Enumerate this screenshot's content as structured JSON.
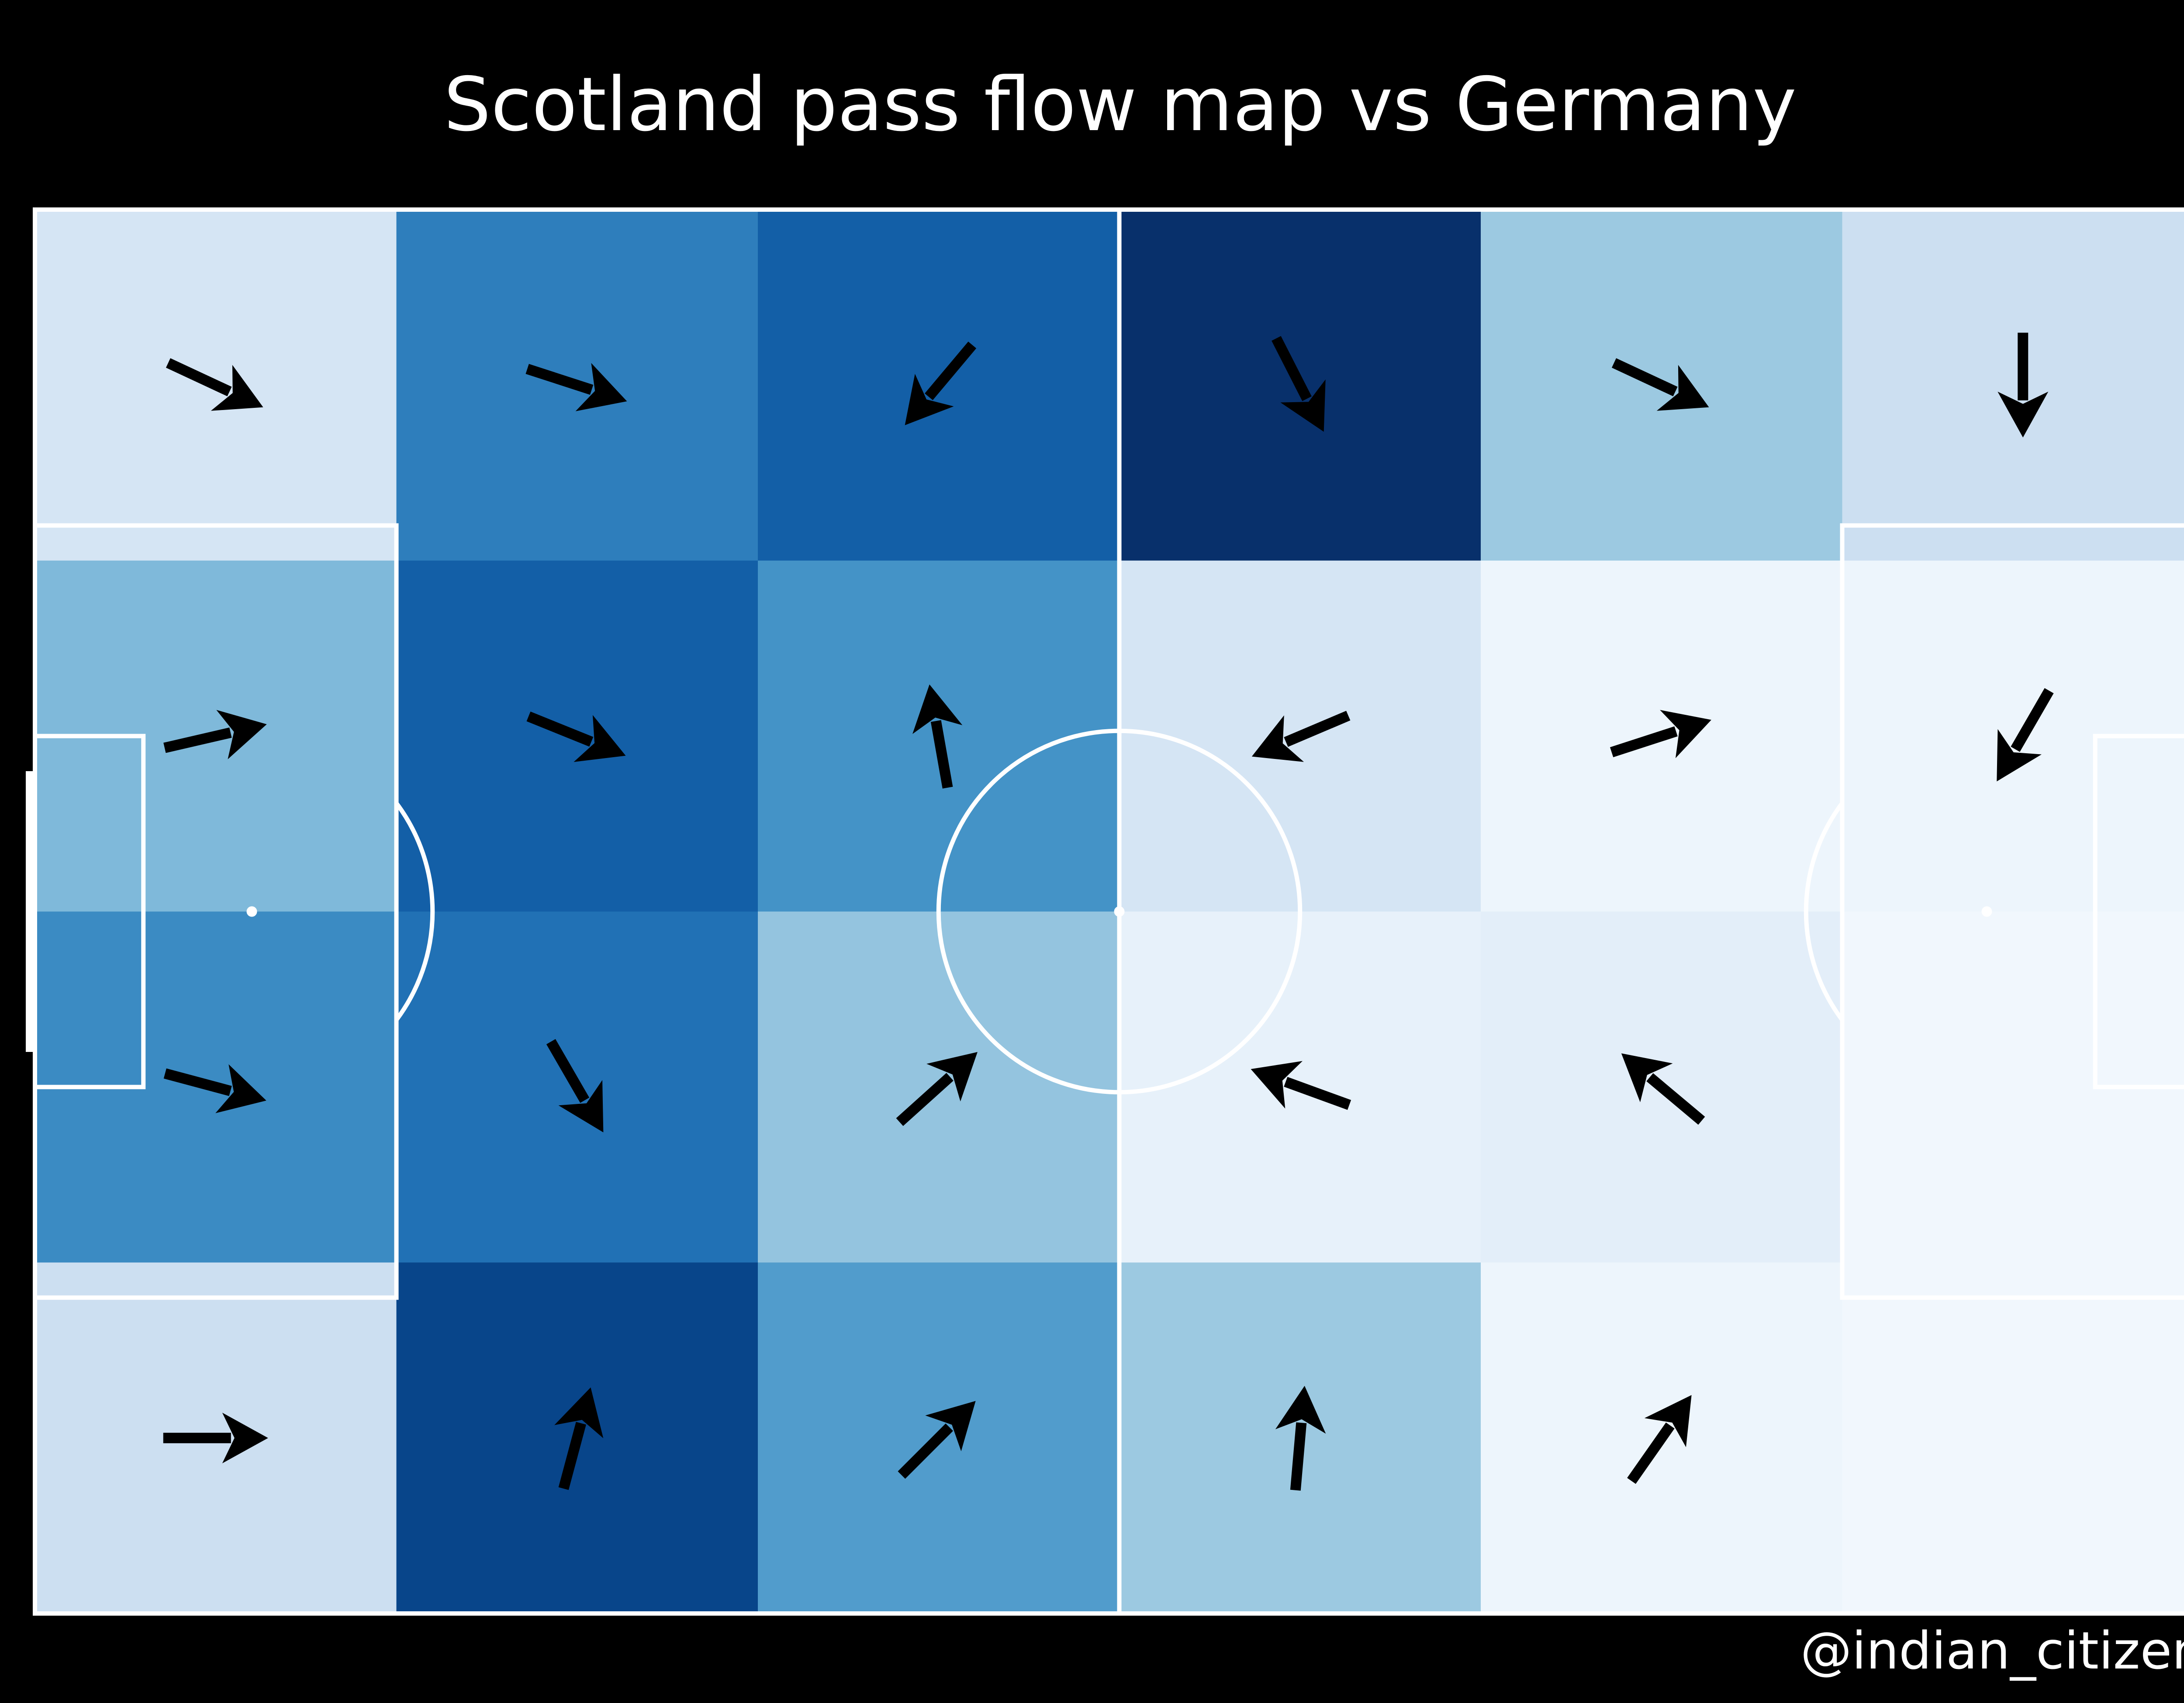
{
  "title": "Scotland pass flow map vs Germany",
  "credit": "@indian_citizen",
  "chart_data": {
    "type": "heatmap",
    "title": "Scotland pass flow map vs Germany",
    "subtitle": "",
    "xlabel": "",
    "ylabel": "",
    "grid": {
      "columns": 6,
      "rows": 4
    },
    "colormap": "Blues",
    "colors": {
      "background": "#000000",
      "pitch_lines": "#ffffff",
      "arrow": "#000000"
    },
    "cells": [
      {
        "col": 0,
        "row": 0,
        "intensity": 0.17,
        "angle": 25
      },
      {
        "col": 1,
        "row": 0,
        "intensity": 0.7,
        "angle": 18
      },
      {
        "col": 2,
        "row": 0,
        "intensity": 0.82,
        "angle": 130
      },
      {
        "col": 3,
        "row": 0,
        "intensity": 1.0,
        "angle": 63
      },
      {
        "col": 4,
        "row": 0,
        "intensity": 0.38,
        "angle": 25
      },
      {
        "col": 5,
        "row": 0,
        "intensity": 0.22,
        "angle": 90
      },
      {
        "col": 0,
        "row": 1,
        "intensity": 0.45,
        "angle": -13
      },
      {
        "col": 1,
        "row": 1,
        "intensity": 0.82,
        "angle": 22
      },
      {
        "col": 2,
        "row": 1,
        "intensity": 0.62,
        "angle": -100
      },
      {
        "col": 3,
        "row": 1,
        "intensity": 0.17,
        "angle": 157
      },
      {
        "col": 4,
        "row": 1,
        "intensity": 0.05,
        "angle": -18
      },
      {
        "col": 5,
        "row": 1,
        "intensity": 0.05,
        "angle": 120
      },
      {
        "col": 0,
        "row": 2,
        "intensity": 0.65,
        "angle": 15
      },
      {
        "col": 1,
        "row": 2,
        "intensity": 0.75,
        "angle": 60
      },
      {
        "col": 2,
        "row": 2,
        "intensity": 0.4,
        "angle": -42
      },
      {
        "col": 3,
        "row": 2,
        "intensity": 0.08,
        "angle": -160
      },
      {
        "col": 4,
        "row": 2,
        "intensity": 0.1,
        "angle": -140
      },
      {
        "col": 5,
        "row": 2,
        "intensity": 0.03,
        "angle": null
      },
      {
        "col": 0,
        "row": 3,
        "intensity": 0.22,
        "angle": 0
      },
      {
        "col": 1,
        "row": 3,
        "intensity": 0.92,
        "angle": -75
      },
      {
        "col": 2,
        "row": 3,
        "intensity": 0.58,
        "angle": -45
      },
      {
        "col": 3,
        "row": 3,
        "intensity": 0.38,
        "angle": -85
      },
      {
        "col": 4,
        "row": 3,
        "intensity": 0.05,
        "angle": -55
      },
      {
        "col": 5,
        "row": 3,
        "intensity": 0.03,
        "angle": null
      }
    ]
  }
}
